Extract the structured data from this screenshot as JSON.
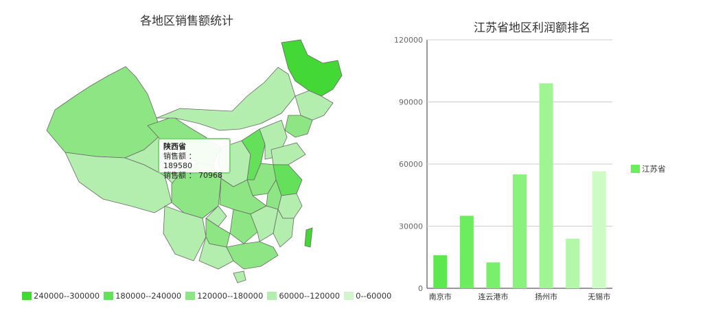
{
  "chart_data": [
    {
      "type": "map",
      "title": "各地区销售额统计",
      "legend": [
        {
          "label": "240000--300000",
          "color": "#44d836"
        },
        {
          "label": "180000--240000",
          "color": "#64e05a"
        },
        {
          "label": "120000--180000",
          "color": "#8ee583"
        },
        {
          "label": "60000--120000",
          "color": "#b4eeae"
        },
        {
          "label": "0--60000",
          "color": "#d3f5ce"
        }
      ],
      "tooltip": {
        "region": "陕西省",
        "rows": [
          {
            "label": "销售额",
            "value": "189580"
          },
          {
            "label": "销售额",
            "value": "70968"
          }
        ]
      }
    },
    {
      "type": "bar",
      "title": "江苏省地区利润额排名",
      "categories": [
        "南京市",
        "",
        "连云港市",
        "",
        "扬州市",
        "",
        "无锡市"
      ],
      "series": [
        {
          "name": "江苏省",
          "values": [
            16000,
            35000,
            12500,
            55000,
            99000,
            24000,
            56500
          ]
        }
      ],
      "bar_colors": [
        "#5de84f",
        "#6ced5f",
        "#7aef6c",
        "#89f27c",
        "#9ff592",
        "#b3f7a8",
        "#cdfbc4"
      ],
      "legend_color": "#6ded5e",
      "ylim": [
        0,
        120000
      ],
      "yticks": [
        0,
        30000,
        60000,
        90000,
        120000
      ]
    }
  ]
}
